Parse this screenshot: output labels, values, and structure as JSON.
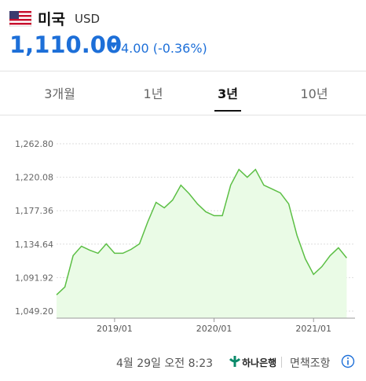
{
  "header": {
    "country": "미국",
    "currency": "USD",
    "rate": "1,110.00",
    "change": "4.00 (-0.36%)"
  },
  "tabs": [
    "3개월",
    "1년",
    "3년",
    "10년"
  ],
  "selected_tab": 2,
  "chart_data": {
    "type": "line",
    "color": "#5cbf45",
    "area_color": "#eafbe6",
    "grid": true,
    "x": [
      "2018/06",
      "2018/07",
      "2018/08",
      "2018/09",
      "2018/10",
      "2018/11",
      "2018/12",
      "2019/01",
      "2019/02",
      "2019/03",
      "2019/04",
      "2019/05",
      "2019/06",
      "2019/07",
      "2019/08",
      "2019/09",
      "2019/10",
      "2019/11",
      "2019/12",
      "2020/01",
      "2020/02",
      "2020/03",
      "2020/04",
      "2020/05",
      "2020/06",
      "2020/07",
      "2020/08",
      "2020/09",
      "2020/10",
      "2020/11",
      "2020/12",
      "2021/01",
      "2021/02",
      "2021/03",
      "2021/04",
      "2021/05"
    ],
    "values": [
      1070,
      1080,
      1120,
      1132,
      1127,
      1123,
      1135,
      1123,
      1123,
      1128,
      1135,
      1163,
      1188,
      1181,
      1191,
      1210,
      1199,
      1186,
      1176,
      1171,
      1171,
      1210,
      1230,
      1220,
      1230,
      1210,
      1205,
      1200,
      1186,
      1146,
      1116,
      1096,
      1106,
      1120,
      1130,
      1117
    ],
    "xlim": [
      "2018/06",
      "2021/06"
    ],
    "xticks": [
      "2019/01",
      "2020/01",
      "2021/01"
    ],
    "ylim": [
      1049.2,
      1262.8
    ],
    "yticks": [
      {
        "value": 1049.2,
        "label": "1,049.20"
      },
      {
        "value": 1091.92,
        "label": "1,091.92"
      },
      {
        "value": 1134.64,
        "label": "1,134.64"
      },
      {
        "value": 1177.36,
        "label": "1,177.36"
      },
      {
        "value": 1220.08,
        "label": "1,220.08"
      },
      {
        "value": 1262.8,
        "label": "1,262.80"
      }
    ]
  },
  "footer": {
    "timestamp": "4월 29일 오전 8:23",
    "bank": "하나은행",
    "disclaimer": "면책조항"
  }
}
